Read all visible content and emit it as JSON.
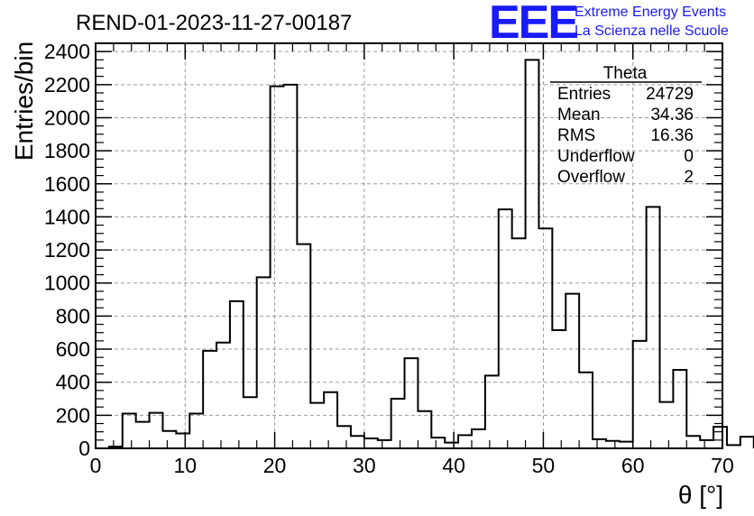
{
  "header": {
    "run_title": "REND-01-2023-11-27-00187",
    "logo_text": "EEE",
    "brand_line1": "Extreme Energy Events",
    "brand_line2": "La Scienza nelle Scuole",
    "brand_color": "#1a1aff"
  },
  "stats": {
    "name": "Theta",
    "rows": [
      {
        "label": "Entries",
        "value": "24729"
      },
      {
        "label": "Mean",
        "value": "34.36"
      },
      {
        "label": "RMS",
        "value": "16.36"
      },
      {
        "label": "Underflow",
        "value": "0"
      },
      {
        "label": "Overflow",
        "value": "2"
      }
    ]
  },
  "chart_data": {
    "type": "histogram",
    "title": "REND-01-2023-11-27-00187",
    "xlabel": "θ [°]",
    "ylabel": "Entries/bin",
    "xlim": [
      0,
      70
    ],
    "ylim": [
      0,
      2450
    ],
    "bin_width": 1.5,
    "bins_start": 0,
    "values": [
      0,
      10,
      210,
      160,
      215,
      105,
      90,
      210,
      590,
      640,
      890,
      310,
      1035,
      2190,
      2200,
      1235,
      275,
      340,
      135,
      75,
      60,
      50,
      300,
      545,
      225,
      65,
      35,
      80,
      115,
      440,
      1445,
      1270,
      2350,
      1330,
      715,
      935,
      460,
      55,
      45,
      40,
      650,
      1460,
      280,
      475,
      75,
      50,
      130,
      20,
      70
    ],
    "x_ticks": [
      "0",
      "10",
      "20",
      "30",
      "40",
      "50",
      "60",
      "70"
    ],
    "x_tick_values": [
      0,
      10,
      20,
      30,
      40,
      50,
      60,
      70
    ],
    "y_ticks": [
      "0",
      "200",
      "400",
      "600",
      "800",
      "1000",
      "1200",
      "1400",
      "1600",
      "1800",
      "2000",
      "2200",
      "2400"
    ],
    "y_tick_values": [
      0,
      200,
      400,
      600,
      800,
      1000,
      1200,
      1400,
      1600,
      1800,
      2000,
      2200,
      2400
    ],
    "grid": true,
    "line_color": "#000000"
  }
}
